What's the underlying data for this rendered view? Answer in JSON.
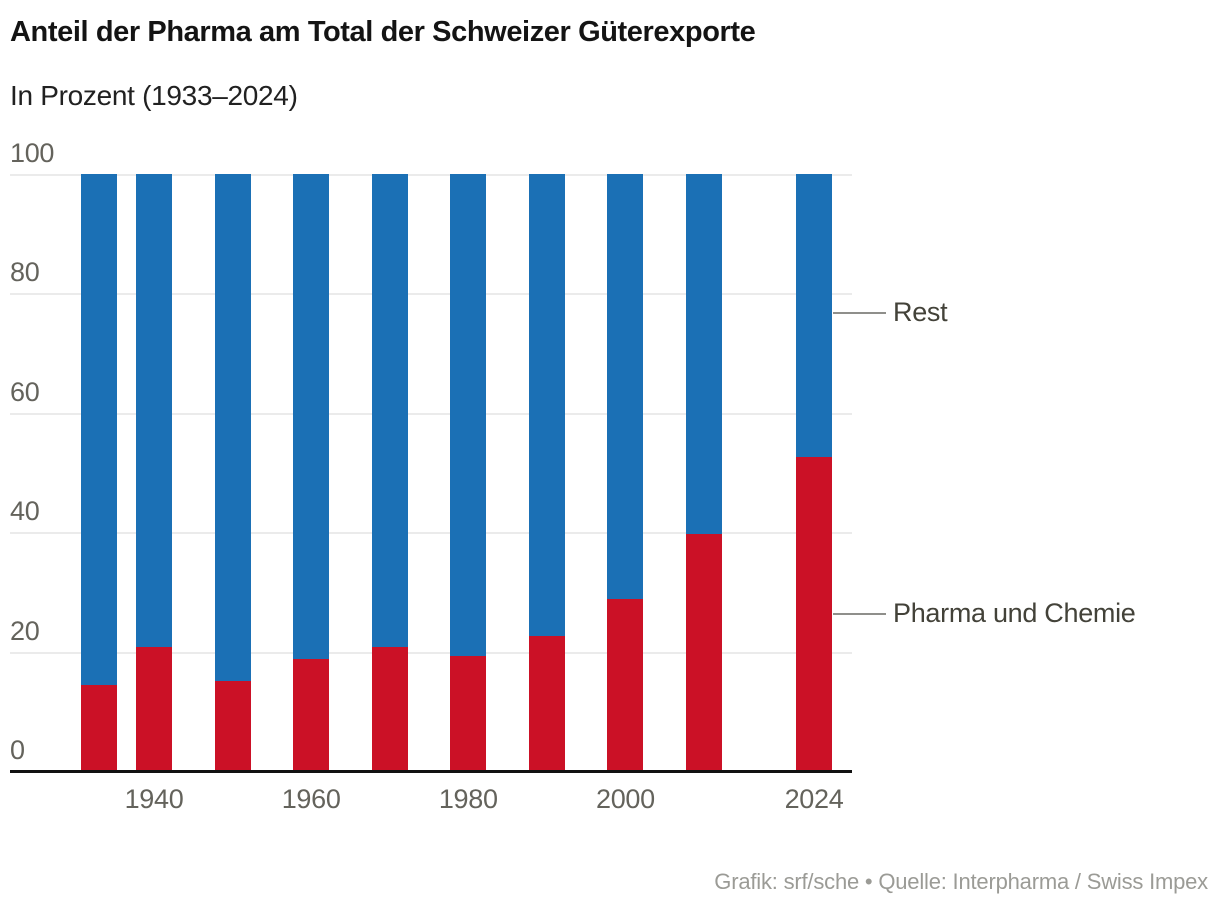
{
  "header": {
    "title": "Anteil der Pharma am Total der Schweizer Güterexporte",
    "subtitle": "In Prozent (1933–2024)"
  },
  "footer": {
    "credit": "Grafik: srf/sche • Quelle: Interpharma / Swiss Impex"
  },
  "colors": {
    "pharma_red": "#cb1126",
    "rest_blue": "#1b70b5",
    "gridline": "#ebebeb",
    "axis_line": "#121212",
    "tick_label": "#64635c",
    "annotation_label": "#434239",
    "leader_line": "#8f8f8b",
    "title": "#141414",
    "subtitle": "#212121",
    "credit": "#9b9b96",
    "background": "#ffffff"
  },
  "chart_data": {
    "type": "bar",
    "stacked": true,
    "title": "Anteil der Pharma am Total der Schweizer Güterexporte",
    "subtitle": "In Prozent (1933–2024)",
    "unit": "percent of total Swiss goods exports",
    "x": [
      1933,
      1940,
      1950,
      1960,
      1970,
      1980,
      1990,
      2000,
      2010,
      2024
    ],
    "series": [
      {
        "name": "Pharma und Chemie",
        "color": "#cb1126",
        "values": [
          14.4,
          20.8,
          15.0,
          18.7,
          20.8,
          19.3,
          22.6,
          28.8,
          39.6,
          52.5
        ]
      },
      {
        "name": "Rest",
        "color": "#1b70b5",
        "values": [
          85.6,
          79.2,
          85.0,
          81.3,
          79.2,
          80.7,
          77.4,
          71.2,
          60.4,
          47.5
        ]
      }
    ],
    "ylim": [
      0,
      100
    ],
    "yticks": [
      0,
      20,
      40,
      60,
      80,
      100
    ],
    "xticks": [
      1940,
      1960,
      1980,
      2000,
      2024
    ],
    "grid": "horizontal",
    "legend_position": "right-annotations",
    "annotations": [
      {
        "label": "Rest",
        "series": "Rest",
        "at_value": 76.8
      },
      {
        "label": "Pharma und Chemie",
        "series": "Pharma und Chemie",
        "at_value": 26.4
      }
    ]
  }
}
